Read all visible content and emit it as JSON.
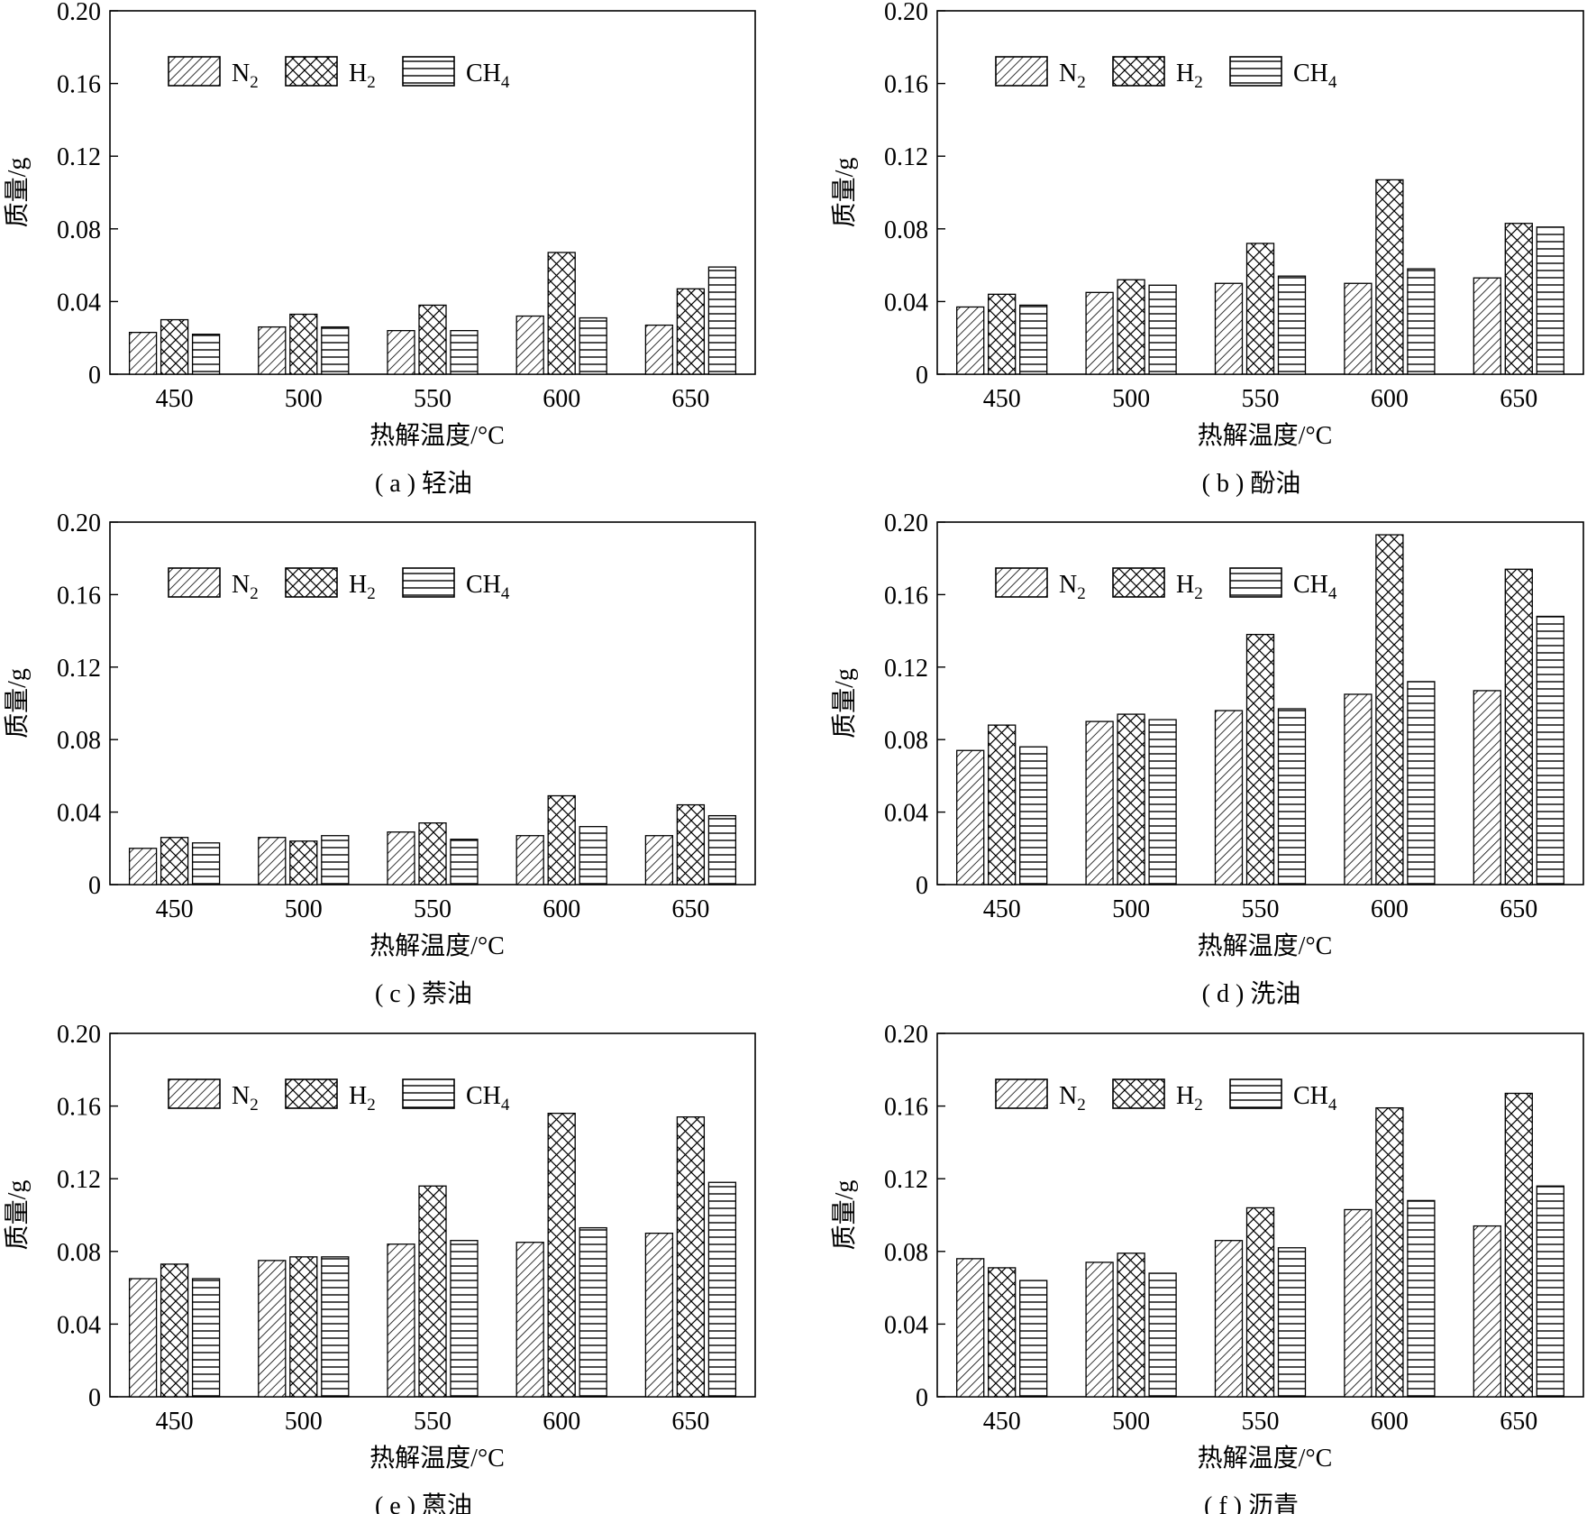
{
  "legend_labels": [
    "N2",
    "H2",
    "CH4"
  ],
  "chart_data": [
    {
      "type": "bar",
      "caption": "( a ) 轻油",
      "xlabel": "热解温度/°C",
      "ylabel": "质量/g",
      "categories": [
        "450",
        "500",
        "550",
        "600",
        "650"
      ],
      "ylim": [
        0,
        0.2
      ],
      "yticks": [
        "0",
        "0.04",
        "0.08",
        "0.12",
        "0.16",
        "0.20"
      ],
      "legend_position": "top-left",
      "series": [
        {
          "name": "N2",
          "values": [
            0.023,
            0.026,
            0.024,
            0.032,
            0.027
          ]
        },
        {
          "name": "H2",
          "values": [
            0.03,
            0.033,
            0.038,
            0.067,
            0.047
          ]
        },
        {
          "name": "CH4",
          "values": [
            0.022,
            0.026,
            0.024,
            0.031,
            0.059
          ]
        }
      ]
    },
    {
      "type": "bar",
      "caption": "( b ) 酚油",
      "xlabel": "热解温度/°C",
      "ylabel": "质量/g",
      "categories": [
        "450",
        "500",
        "550",
        "600",
        "650"
      ],
      "ylim": [
        0,
        0.2
      ],
      "yticks": [
        "0",
        "0.04",
        "0.08",
        "0.12",
        "0.16",
        "0.20"
      ],
      "legend_position": "top-left",
      "series": [
        {
          "name": "N2",
          "values": [
            0.037,
            0.045,
            0.05,
            0.05,
            0.053
          ]
        },
        {
          "name": "H2",
          "values": [
            0.044,
            0.052,
            0.072,
            0.107,
            0.083
          ]
        },
        {
          "name": "CH4",
          "values": [
            0.038,
            0.049,
            0.054,
            0.058,
            0.081
          ]
        }
      ]
    },
    {
      "type": "bar",
      "caption": "( c ) 萘油",
      "xlabel": "热解温度/°C",
      "ylabel": "质量/g",
      "categories": [
        "450",
        "500",
        "550",
        "600",
        "650"
      ],
      "ylim": [
        0,
        0.2
      ],
      "yticks": [
        "0",
        "0.04",
        "0.08",
        "0.12",
        "0.16",
        "0.20"
      ],
      "legend_position": "top-left",
      "series": [
        {
          "name": "N2",
          "values": [
            0.02,
            0.026,
            0.029,
            0.027,
            0.027
          ]
        },
        {
          "name": "H2",
          "values": [
            0.026,
            0.024,
            0.034,
            0.049,
            0.044
          ]
        },
        {
          "name": "CH4",
          "values": [
            0.023,
            0.027,
            0.025,
            0.032,
            0.038
          ]
        }
      ]
    },
    {
      "type": "bar",
      "caption": "( d ) 洗油",
      "xlabel": "热解温度/°C",
      "ylabel": "质量/g",
      "categories": [
        "450",
        "500",
        "550",
        "600",
        "650"
      ],
      "ylim": [
        0,
        0.2
      ],
      "yticks": [
        "0",
        "0.04",
        "0.08",
        "0.12",
        "0.16",
        "0.20"
      ],
      "legend_position": "top-left",
      "series": [
        {
          "name": "N2",
          "values": [
            0.074,
            0.09,
            0.096,
            0.105,
            0.107
          ]
        },
        {
          "name": "H2",
          "values": [
            0.088,
            0.094,
            0.138,
            0.193,
            0.174
          ]
        },
        {
          "name": "CH4",
          "values": [
            0.076,
            0.091,
            0.097,
            0.112,
            0.148
          ]
        }
      ]
    },
    {
      "type": "bar",
      "caption": "( e ) 蒽油",
      "xlabel": "热解温度/°C",
      "ylabel": "质量/g",
      "categories": [
        "450",
        "500",
        "550",
        "600",
        "650"
      ],
      "ylim": [
        0,
        0.2
      ],
      "yticks": [
        "0",
        "0.04",
        "0.08",
        "0.12",
        "0.16",
        "0.20"
      ],
      "legend_position": "top-left",
      "series": [
        {
          "name": "N2",
          "values": [
            0.065,
            0.075,
            0.084,
            0.085,
            0.09
          ]
        },
        {
          "name": "H2",
          "values": [
            0.073,
            0.077,
            0.116,
            0.156,
            0.154
          ]
        },
        {
          "name": "CH4",
          "values": [
            0.065,
            0.077,
            0.086,
            0.093,
            0.118
          ]
        }
      ]
    },
    {
      "type": "bar",
      "caption": "( f ) 沥青",
      "xlabel": "热解温度/°C",
      "ylabel": "质量/g",
      "categories": [
        "450",
        "500",
        "550",
        "600",
        "650"
      ],
      "ylim": [
        0,
        0.2
      ],
      "yticks": [
        "0",
        "0.04",
        "0.08",
        "0.12",
        "0.16",
        "0.20"
      ],
      "legend_position": "top-left",
      "series": [
        {
          "name": "N2",
          "values": [
            0.076,
            0.074,
            0.086,
            0.103,
            0.094
          ]
        },
        {
          "name": "H2",
          "values": [
            0.071,
            0.079,
            0.104,
            0.159,
            0.167
          ]
        },
        {
          "name": "CH4",
          "values": [
            0.064,
            0.068,
            0.082,
            0.108,
            0.116
          ]
        }
      ]
    }
  ]
}
